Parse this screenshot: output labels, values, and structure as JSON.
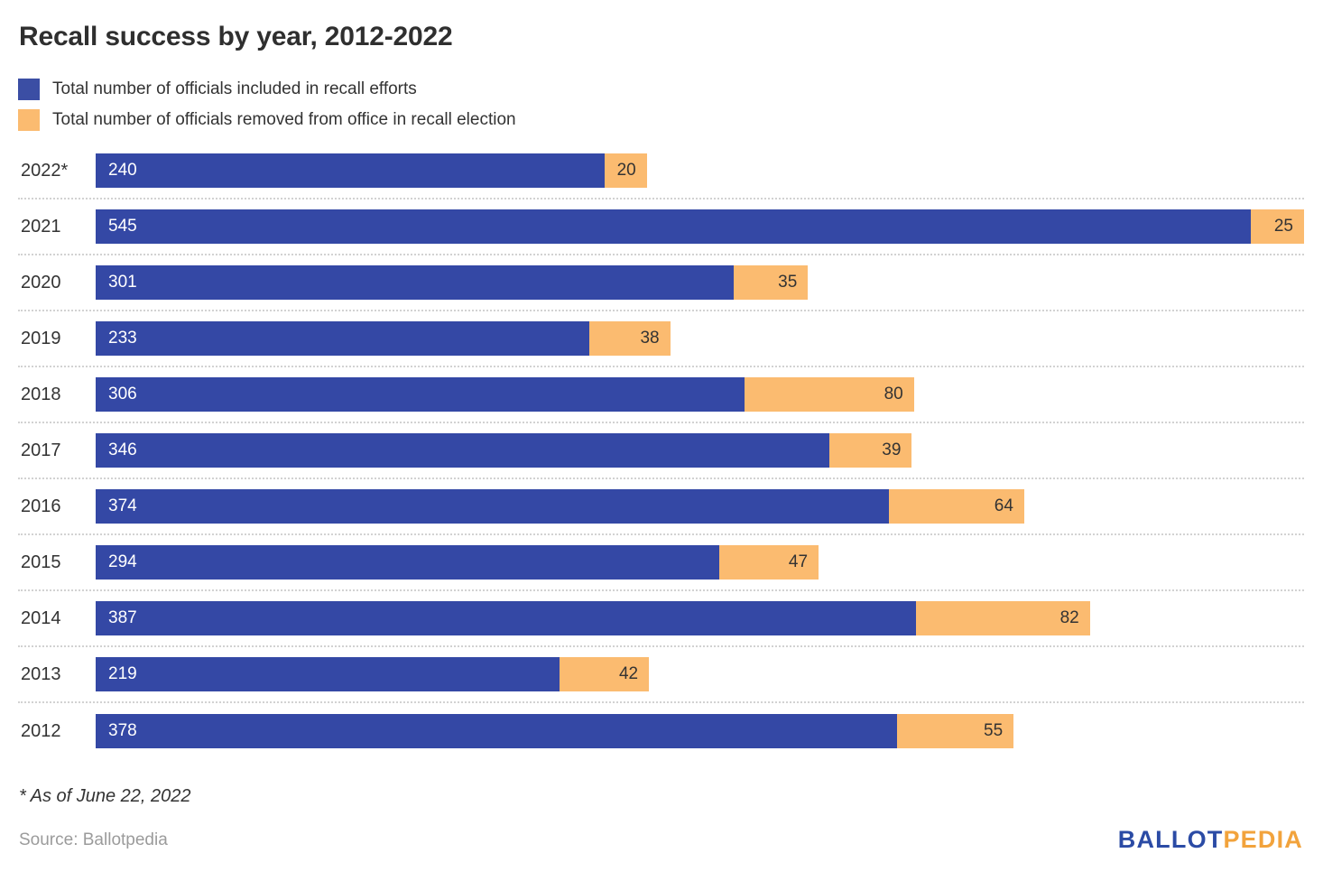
{
  "title": "Recall success by year, 2012-2022",
  "legend": [
    {
      "label": "Total number of officials included in recall efforts",
      "color": "#3b4ea4"
    },
    {
      "label": "Total number of officials removed from office in recall election",
      "color": "#fbbb70"
    }
  ],
  "chart_data": {
    "type": "bar",
    "orientation": "horizontal",
    "stacked": true,
    "title": "Recall success by year, 2012-2022",
    "categories": [
      "2022*",
      "2021",
      "2020",
      "2019",
      "2018",
      "2017",
      "2016",
      "2015",
      "2014",
      "2013",
      "2012"
    ],
    "series": [
      {
        "name": "Total number of officials included in recall efforts",
        "color": "#3448a5",
        "values": [
          240,
          545,
          301,
          233,
          306,
          346,
          374,
          294,
          387,
          219,
          378
        ]
      },
      {
        "name": "Total number of officials removed from office in recall election",
        "color": "#fbbb70",
        "values": [
          20,
          25,
          35,
          38,
          80,
          39,
          64,
          47,
          82,
          42,
          55
        ]
      }
    ],
    "xlim": [
      0,
      570
    ],
    "grid": false,
    "row_separator": "dotted",
    "legend_position": "top-left",
    "value_labels": "inside"
  },
  "footnote": "* As of June 22, 2022",
  "source": "Source: Ballotpedia",
  "logo": {
    "part1": "BALLOT",
    "part2": "PEDIA",
    "color1": "#2b4ba5",
    "color2": "#f2a33c"
  }
}
